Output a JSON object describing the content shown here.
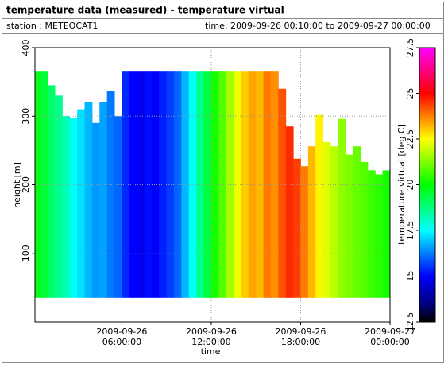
{
  "chart_data": {
    "type": "heatmap",
    "title": "temperature data (measured) - temperature virtual",
    "station": "station : METEOCAT1",
    "period": "time: 2009-09-26 00:10:00 to 2009-09-27 00:00:00",
    "xlabel": "time",
    "ylabel": "height [m]",
    "colorbar_label": "temperature virtual [deg C]",
    "x": [
      "2009-09-26 00:10:00",
      "2009-09-26 00:30:00",
      "2009-09-26 01:00:00",
      "2009-09-26 01:30:00",
      "2009-09-26 02:00:00",
      "2009-09-26 02:30:00",
      "2009-09-26 03:00:00",
      "2009-09-26 03:30:00",
      "2009-09-26 04:00:00",
      "2009-09-26 04:30:00",
      "2009-09-26 05:00:00",
      "2009-09-26 05:30:00",
      "2009-09-26 06:00:00",
      "2009-09-26 06:30:00",
      "2009-09-26 07:00:00",
      "2009-09-26 07:30:00",
      "2009-09-26 08:00:00",
      "2009-09-26 08:30:00",
      "2009-09-26 09:00:00",
      "2009-09-26 09:30:00",
      "2009-09-26 10:00:00",
      "2009-09-26 10:30:00",
      "2009-09-26 11:00:00",
      "2009-09-26 11:30:00",
      "2009-09-26 12:00:00",
      "2009-09-26 12:30:00",
      "2009-09-26 13:00:00",
      "2009-09-26 13:30:00",
      "2009-09-26 14:00:00",
      "2009-09-26 14:30:00",
      "2009-09-26 15:00:00",
      "2009-09-26 15:30:00",
      "2009-09-26 16:00:00",
      "2009-09-26 16:30:00",
      "2009-09-26 17:00:00",
      "2009-09-26 17:30:00",
      "2009-09-26 18:00:00",
      "2009-09-26 18:30:00",
      "2009-09-26 19:00:00",
      "2009-09-26 19:30:00",
      "2009-09-26 20:00:00",
      "2009-09-26 20:30:00",
      "2009-09-26 21:00:00",
      "2009-09-26 21:30:00",
      "2009-09-26 22:00:00",
      "2009-09-26 22:30:00",
      "2009-09-26 23:00:00",
      "2009-09-26 23:30:00"
    ],
    "values": [
      19.8,
      19.5,
      19.0,
      18.6,
      18.2,
      17.6,
      17.2,
      16.8,
      16.5,
      16.6,
      16.2,
      16.0,
      15.4,
      15.0,
      14.8,
      15.1,
      14.9,
      15.3,
      15.6,
      16.0,
      16.8,
      17.6,
      18.6,
      19.4,
      20.2,
      20.8,
      21.6,
      22.3,
      23.0,
      23.4,
      23.2,
      23.8,
      23.6,
      24.2,
      24.6,
      24.4,
      23.8,
      23.2,
      22.6,
      22.2,
      21.8,
      21.4,
      21.2,
      21.0,
      20.8,
      20.6,
      20.4,
      20.2
    ],
    "tops": [
      365,
      365,
      345,
      330,
      300,
      297,
      310,
      320,
      290,
      320,
      337,
      300,
      365,
      365,
      365,
      365,
      365,
      365,
      365,
      365,
      365,
      365,
      365,
      365,
      365,
      365,
      365,
      365,
      365,
      365,
      365,
      365,
      365,
      340,
      285,
      238,
      227,
      256,
      302,
      262,
      256,
      296,
      244,
      256,
      233,
      221,
      215,
      221
    ],
    "bottom_height": 35,
    "xlim": [
      "2009-09-26 00:10:00",
      "2009-09-27 00:00:00"
    ],
    "xticks": [
      {
        "value": "2009-09-26 06:00:00",
        "label": "2009-09-26\n06:00:00"
      },
      {
        "value": "2009-09-26 12:00:00",
        "label": "2009-09-26\n12:00:00"
      },
      {
        "value": "2009-09-26 18:00:00",
        "label": "2009-09-26\n18:00:00"
      },
      {
        "value": "2009-09-27 00:00:00",
        "label": "2009-09-27\n00:00:00"
      }
    ],
    "ylim": [
      0,
      400
    ],
    "yticks": [
      100,
      200,
      300,
      400
    ],
    "clim": [
      12.5,
      27.5
    ],
    "cticks": [
      12.5,
      15,
      17.5,
      20,
      22.5,
      25,
      27.5
    ],
    "colorscale": [
      {
        "value": 12.5,
        "color": "#000000"
      },
      {
        "value": 13.5,
        "color": "#000080"
      },
      {
        "value": 15,
        "color": "#0000ff"
      },
      {
        "value": 17.5,
        "color": "#00ffff"
      },
      {
        "value": 20,
        "color": "#00ff00"
      },
      {
        "value": 22.5,
        "color": "#ffff00"
      },
      {
        "value": 25,
        "color": "#ff0000"
      },
      {
        "value": 27.5,
        "color": "#ff00ff"
      }
    ],
    "grid": true
  }
}
